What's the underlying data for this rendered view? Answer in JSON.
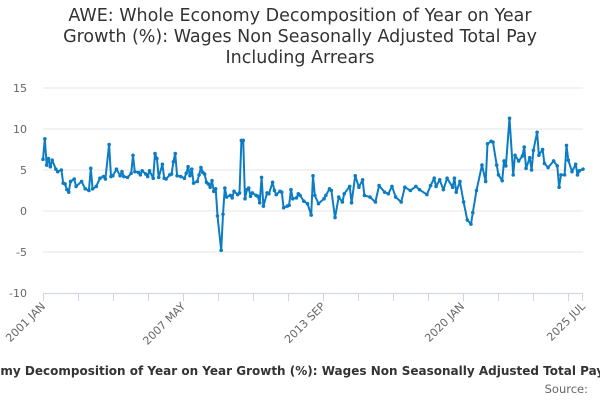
{
  "chart_data": {
    "type": "line",
    "title": "AWE: Whole Economy Decomposition of Year on Year Growth (%): Wages Non Seasonally Adjusted Total Pay Including Arrears",
    "xlabel": "",
    "ylabel": "",
    "ylim": [
      -10,
      15
    ],
    "yticks": [
      "15",
      "10",
      "5",
      "0",
      "-5",
      "-10"
    ],
    "xlim": [
      "2001-01",
      "2025-07"
    ],
    "xtick_labels": [
      "2001 JAN",
      "2007 MAY",
      "2013 SEP",
      "2020 JAN",
      "2025 JUL"
    ],
    "grid": true,
    "legend_position": "bottom",
    "line_color": "#0c7cc3",
    "series": [
      {
        "name": "AWE: Whole Economy Decomposition of Year on Year Growth (%): Wages Non Seasonally Adjusted Total Pay Including Arrears",
        "points": [
          [
            "2001-01",
            6.3
          ],
          [
            "2001-02",
            8.8
          ],
          [
            "2001-03",
            5.6
          ],
          [
            "2001-04",
            6.4
          ],
          [
            "2001-05",
            5.4
          ],
          [
            "2001-06",
            6.2
          ],
          [
            "2001-08",
            5.1
          ],
          [
            "2001-09",
            4.8
          ],
          [
            "2001-11",
            5.0
          ],
          [
            "2001-12",
            3.4
          ],
          [
            "2002-01",
            3.3
          ],
          [
            "2002-02",
            2.6
          ],
          [
            "2002-03",
            2.3
          ],
          [
            "2002-04",
            3.6
          ],
          [
            "2002-06",
            3.9
          ],
          [
            "2002-07",
            3.0
          ],
          [
            "2002-10",
            3.6
          ],
          [
            "2002-12",
            2.7
          ],
          [
            "2003-02",
            2.5
          ],
          [
            "2003-03",
            5.2
          ],
          [
            "2003-04",
            2.7
          ],
          [
            "2003-06",
            3.0
          ],
          [
            "2003-08",
            4.0
          ],
          [
            "2003-10",
            4.2
          ],
          [
            "2003-11",
            3.9
          ],
          [
            "2004-01",
            8.1
          ],
          [
            "2004-02",
            4.2
          ],
          [
            "2004-03",
            4.3
          ],
          [
            "2004-05",
            5.1
          ],
          [
            "2004-07",
            4.3
          ],
          [
            "2004-08",
            4.8
          ],
          [
            "2004-09",
            4.2
          ],
          [
            "2004-11",
            4.1
          ],
          [
            "2005-01",
            4.6
          ],
          [
            "2005-02",
            6.8
          ],
          [
            "2005-03",
            4.8
          ],
          [
            "2005-05",
            4.7
          ],
          [
            "2005-06",
            4.4
          ],
          [
            "2005-07",
            4.9
          ],
          [
            "2005-09",
            4.5
          ],
          [
            "2005-10",
            4.2
          ],
          [
            "2005-11",
            4.9
          ],
          [
            "2006-01",
            4.0
          ],
          [
            "2006-02",
            7.0
          ],
          [
            "2006-03",
            6.4
          ],
          [
            "2006-04",
            4.1
          ],
          [
            "2006-06",
            5.7
          ],
          [
            "2006-07",
            4.0
          ],
          [
            "2006-08",
            3.9
          ],
          [
            "2006-10",
            4.4
          ],
          [
            "2006-11",
            4.5
          ],
          [
            "2006-12",
            6.0
          ],
          [
            "2007-01",
            7.0
          ],
          [
            "2007-02",
            4.3
          ],
          [
            "2007-04",
            4.2
          ],
          [
            "2007-06",
            4.0
          ],
          [
            "2007-07",
            4.6
          ],
          [
            "2007-08",
            5.4
          ],
          [
            "2007-09",
            4.3
          ],
          [
            "2007-10",
            5.1
          ],
          [
            "2007-11",
            3.4
          ],
          [
            "2008-01",
            3.6
          ],
          [
            "2008-02",
            4.4
          ],
          [
            "2008-03",
            5.3
          ],
          [
            "2008-04",
            4.7
          ],
          [
            "2008-05",
            4.5
          ],
          [
            "2008-06",
            3.5
          ],
          [
            "2008-07",
            3.3
          ],
          [
            "2008-08",
            2.9
          ],
          [
            "2008-09",
            3.7
          ],
          [
            "2008-10",
            2.4
          ],
          [
            "2008-11",
            2.7
          ],
          [
            "2008-12",
            -0.6
          ],
          [
            "2009-02",
            -4.8
          ],
          [
            "2009-03",
            -0.4
          ],
          [
            "2009-04",
            2.8
          ],
          [
            "2009-05",
            1.7
          ],
          [
            "2009-07",
            1.9
          ],
          [
            "2009-08",
            1.6
          ],
          [
            "2009-09",
            2.4
          ],
          [
            "2009-11",
            2.0
          ],
          [
            "2009-12",
            2.2
          ],
          [
            "2010-01",
            8.6
          ],
          [
            "2010-02",
            8.6
          ],
          [
            "2010-03",
            1.5
          ],
          [
            "2010-04",
            2.6
          ],
          [
            "2010-05",
            2.8
          ],
          [
            "2010-06",
            1.8
          ],
          [
            "2010-07",
            2.2
          ],
          [
            "2010-09",
            1.9
          ],
          [
            "2010-10",
            1.8
          ],
          [
            "2010-11",
            1.0
          ],
          [
            "2010-12",
            4.1
          ],
          [
            "2011-01",
            0.6
          ],
          [
            "2011-03",
            2.2
          ],
          [
            "2011-04",
            2.1
          ],
          [
            "2011-06",
            3.5
          ],
          [
            "2011-07",
            2.5
          ],
          [
            "2011-08",
            2.0
          ],
          [
            "2011-10",
            2.4
          ],
          [
            "2011-11",
            2.3
          ],
          [
            "2011-12",
            0.4
          ],
          [
            "2012-02",
            0.6
          ],
          [
            "2012-03",
            0.7
          ],
          [
            "2012-04",
            2.6
          ],
          [
            "2012-05",
            1.5
          ],
          [
            "2012-07",
            1.6
          ],
          [
            "2012-08",
            2.1
          ],
          [
            "2012-09",
            1.9
          ],
          [
            "2012-11",
            1.2
          ],
          [
            "2013-01",
            0.9
          ],
          [
            "2013-03",
            -0.5
          ],
          [
            "2013-04",
            4.3
          ],
          [
            "2013-05",
            1.9
          ],
          [
            "2013-07",
            0.9
          ],
          [
            "2013-10",
            1.5
          ],
          [
            "2013-11",
            1.9
          ],
          [
            "2014-01",
            2.7
          ],
          [
            "2014-02",
            2.5
          ],
          [
            "2014-04",
            -0.8
          ],
          [
            "2014-06",
            1.7
          ],
          [
            "2014-08",
            1.1
          ],
          [
            "2014-09",
            2.1
          ],
          [
            "2014-12",
            3.0
          ],
          [
            "2015-01",
            1.0
          ],
          [
            "2015-03",
            4.3
          ],
          [
            "2015-05",
            2.9
          ],
          [
            "2015-07",
            3.8
          ],
          [
            "2015-08",
            1.9
          ],
          [
            "2015-11",
            1.7
          ],
          [
            "2016-02",
            1.1
          ],
          [
            "2016-04",
            3.1
          ],
          [
            "2016-07",
            2.3
          ],
          [
            "2016-09",
            2.1
          ],
          [
            "2016-11",
            3.0
          ],
          [
            "2017-01",
            1.7
          ],
          [
            "2017-04",
            1.1
          ],
          [
            "2017-06",
            2.9
          ],
          [
            "2017-09",
            2.5
          ],
          [
            "2017-12",
            3.0
          ],
          [
            "2018-02",
            2.6
          ],
          [
            "2018-06",
            2.0
          ],
          [
            "2018-08",
            3.1
          ],
          [
            "2018-10",
            4.0
          ],
          [
            "2018-11",
            3.0
          ],
          [
            "2019-01",
            3.8
          ],
          [
            "2019-03",
            2.6
          ],
          [
            "2019-05",
            4.0
          ],
          [
            "2019-08",
            2.9
          ],
          [
            "2019-09",
            4.0
          ],
          [
            "2019-10",
            2.3
          ],
          [
            "2019-12",
            3.6
          ],
          [
            "2020-02",
            1.1
          ],
          [
            "2020-04",
            -1.1
          ],
          [
            "2020-06",
            -1.6
          ],
          [
            "2020-07",
            -0.2
          ],
          [
            "2020-09",
            2.5
          ],
          [
            "2020-12",
            5.6
          ],
          [
            "2021-02",
            3.6
          ],
          [
            "2021-03",
            8.2
          ],
          [
            "2021-05",
            8.5
          ],
          [
            "2021-06",
            8.4
          ],
          [
            "2021-08",
            5.6
          ],
          [
            "2021-09",
            4.4
          ],
          [
            "2021-11",
            3.7
          ],
          [
            "2021-12",
            6.1
          ],
          [
            "2022-01",
            5.5
          ],
          [
            "2022-03",
            11.3
          ],
          [
            "2022-05",
            4.4
          ],
          [
            "2022-06",
            6.8
          ],
          [
            "2022-08",
            6.1
          ],
          [
            "2022-10",
            6.7
          ],
          [
            "2022-11",
            7.8
          ],
          [
            "2022-12",
            5.2
          ],
          [
            "2023-02",
            6.5
          ],
          [
            "2023-03",
            5.0
          ],
          [
            "2023-04",
            7.4
          ],
          [
            "2023-06",
            9.6
          ],
          [
            "2023-07",
            6.8
          ],
          [
            "2023-09",
            7.5
          ],
          [
            "2023-10",
            5.8
          ],
          [
            "2023-12",
            5.3
          ],
          [
            "2024-03",
            6.1
          ],
          [
            "2024-05",
            5.5
          ],
          [
            "2024-06",
            2.9
          ],
          [
            "2024-07",
            4.4
          ],
          [
            "2024-09",
            4.4
          ],
          [
            "2024-10",
            8.0
          ],
          [
            "2024-11",
            6.2
          ],
          [
            "2025-01",
            4.8
          ],
          [
            "2025-03",
            5.7
          ],
          [
            "2025-04",
            4.4
          ],
          [
            "2025-05",
            4.9
          ],
          [
            "2025-07",
            5.1
          ]
        ]
      }
    ],
    "source_label": "Source:"
  }
}
